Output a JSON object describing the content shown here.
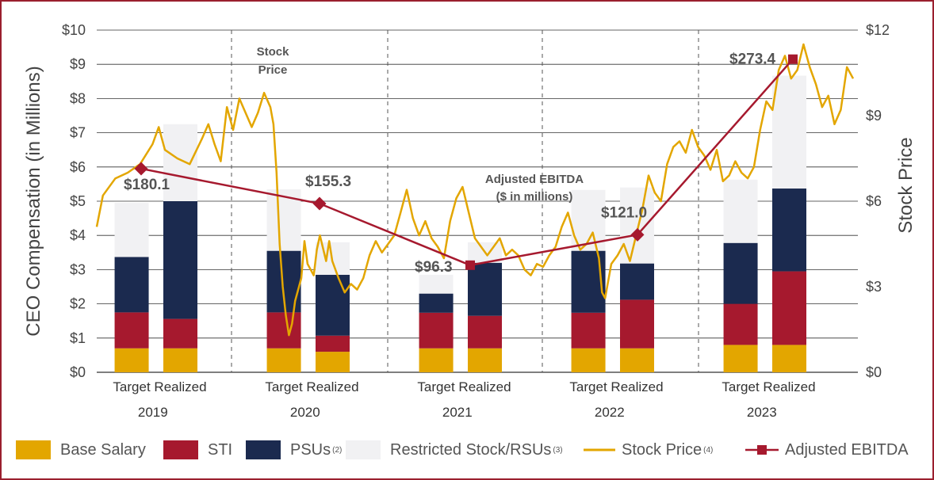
{
  "chart_data": {
    "type": "bar",
    "title": "",
    "ylabel": "CEO Compensation (in Millions)",
    "y2label": "Stock Price",
    "ylim": [
      0,
      10
    ],
    "y2lim": [
      0,
      12
    ],
    "yticks": [
      "$0",
      "$1",
      "$2",
      "$3",
      "$4",
      "$5",
      "$6",
      "$7",
      "$8",
      "$9",
      "$10"
    ],
    "y2ticks": [
      "$0",
      "$3",
      "$6",
      "$9",
      "$12"
    ],
    "years": [
      "2019",
      "2020",
      "2021",
      "2022",
      "2023"
    ],
    "bar_labels": [
      "Target",
      "Realized"
    ],
    "groups": [
      {
        "year": "2019",
        "bars": [
          {
            "label": "Target",
            "base": 0.7,
            "sti": 1.05,
            "psus": 1.62,
            "rs": 1.58
          },
          {
            "label": "Realized",
            "base": 0.7,
            "sti": 0.86,
            "psus": 3.44,
            "rs": 2.25
          }
        ]
      },
      {
        "year": "2020",
        "bars": [
          {
            "label": "Target",
            "base": 0.7,
            "sti": 1.05,
            "psus": 1.8,
            "rs": 1.8
          },
          {
            "label": "Realized",
            "base": 0.6,
            "sti": 0.47,
            "psus": 1.78,
            "rs": 0.95
          }
        ]
      },
      {
        "year": "2021",
        "bars": [
          {
            "label": "Target",
            "base": 0.7,
            "sti": 1.04,
            "psus": 0.56,
            "rs": 0.55
          },
          {
            "label": "Realized",
            "base": 0.7,
            "sti": 0.95,
            "psus": 1.55,
            "rs": 0.6
          }
        ]
      },
      {
        "year": "2022",
        "bars": [
          {
            "label": "Target",
            "base": 0.7,
            "sti": 1.04,
            "psus": 1.81,
            "rs": 1.78
          },
          {
            "label": "Realized",
            "base": 0.7,
            "sti": 1.42,
            "psus": 1.06,
            "rs": 2.22
          }
        ]
      },
      {
        "year": "2023",
        "bars": [
          {
            "label": "Target",
            "base": 0.8,
            "sti": 1.2,
            "psus": 1.78,
            "rs": 1.85
          },
          {
            "label": "Realized",
            "base": 0.8,
            "sti": 2.15,
            "psus": 2.42,
            "rs": 3.3
          }
        ]
      }
    ],
    "adjusted_ebitda": [
      {
        "year": "2019",
        "value": 180.1,
        "label": "$180.1",
        "y_left": 5.95
      },
      {
        "year": "2020",
        "value": 155.3,
        "label": "$155.3",
        "y_left": 4.93
      },
      {
        "year": "2021",
        "value": 96.3,
        "label": "$96.3",
        "y_left": 3.13
      },
      {
        "year": "2022",
        "value": 121.0,
        "label": "$121.0",
        "y_left": 4.02
      },
      {
        "year": "2023",
        "value": 273.4,
        "label": "$273.4",
        "y_left": 9.15
      }
    ],
    "stock_price_points": [
      [
        0.0,
        5.1
      ],
      [
        0.01,
        6.2
      ],
      [
        0.03,
        6.8
      ],
      [
        0.05,
        7.0
      ],
      [
        0.07,
        7.3
      ],
      [
        0.09,
        8.0
      ],
      [
        0.1,
        8.6
      ],
      [
        0.11,
        7.8
      ],
      [
        0.13,
        7.5
      ],
      [
        0.15,
        7.3
      ],
      [
        0.17,
        8.2
      ],
      [
        0.18,
        8.7
      ],
      [
        0.19,
        8.0
      ],
      [
        0.2,
        7.4
      ],
      [
        0.21,
        9.3
      ],
      [
        0.22,
        8.5
      ],
      [
        0.23,
        9.6
      ],
      [
        0.24,
        9.1
      ],
      [
        0.25,
        8.6
      ],
      [
        0.26,
        9.1
      ],
      [
        0.27,
        9.8
      ],
      [
        0.28,
        9.3
      ],
      [
        0.285,
        8.7
      ],
      [
        0.29,
        7.0
      ],
      [
        0.295,
        4.5
      ],
      [
        0.3,
        3.0
      ],
      [
        0.305,
        2.0
      ],
      [
        0.31,
        1.3
      ],
      [
        0.315,
        1.7
      ],
      [
        0.32,
        2.5
      ],
      [
        0.33,
        3.3
      ],
      [
        0.335,
        4.6
      ],
      [
        0.34,
        3.8
      ],
      [
        0.35,
        3.4
      ],
      [
        0.355,
        4.3
      ],
      [
        0.36,
        4.8
      ],
      [
        0.37,
        3.9
      ],
      [
        0.375,
        4.6
      ],
      [
        0.38,
        3.9
      ],
      [
        0.39,
        3.3
      ],
      [
        0.4,
        2.8
      ],
      [
        0.41,
        3.1
      ],
      [
        0.42,
        2.9
      ],
      [
        0.43,
        3.3
      ],
      [
        0.44,
        4.1
      ],
      [
        0.45,
        4.6
      ],
      [
        0.46,
        4.2
      ],
      [
        0.47,
        4.5
      ],
      [
        0.48,
        4.8
      ],
      [
        0.49,
        5.6
      ],
      [
        0.5,
        6.4
      ],
      [
        0.51,
        5.4
      ],
      [
        0.52,
        4.8
      ],
      [
        0.53,
        5.3
      ],
      [
        0.54,
        4.7
      ],
      [
        0.55,
        4.4
      ],
      [
        0.56,
        4.0
      ],
      [
        0.57,
        5.3
      ],
      [
        0.58,
        6.1
      ],
      [
        0.59,
        6.5
      ],
      [
        0.6,
        5.6
      ],
      [
        0.61,
        4.7
      ],
      [
        0.62,
        4.4
      ],
      [
        0.63,
        4.1
      ],
      [
        0.64,
        4.4
      ],
      [
        0.65,
        4.7
      ],
      [
        0.66,
        4.1
      ],
      [
        0.67,
        4.3
      ],
      [
        0.68,
        4.1
      ],
      [
        0.69,
        3.6
      ],
      [
        0.7,
        3.4
      ],
      [
        0.71,
        3.8
      ],
      [
        0.72,
        3.7
      ],
      [
        0.73,
        4.1
      ],
      [
        0.74,
        4.4
      ],
      [
        0.75,
        5.1
      ],
      [
        0.76,
        5.6
      ],
      [
        0.77,
        4.8
      ],
      [
        0.78,
        4.3
      ],
      [
        0.79,
        4.5
      ],
      [
        0.8,
        4.9
      ],
      [
        0.81,
        4.0
      ],
      [
        0.815,
        2.8
      ],
      [
        0.82,
        2.6
      ],
      [
        0.83,
        3.8
      ],
      [
        0.84,
        4.1
      ],
      [
        0.85,
        4.5
      ],
      [
        0.86,
        3.9
      ],
      [
        0.87,
        4.8
      ],
      [
        0.88,
        5.7
      ],
      [
        0.89,
        6.9
      ],
      [
        0.9,
        6.3
      ],
      [
        0.91,
        6.0
      ],
      [
        0.92,
        7.3
      ],
      [
        0.93,
        7.9
      ],
      [
        0.94,
        8.1
      ],
      [
        0.95,
        7.7
      ],
      [
        0.96,
        8.5
      ],
      [
        0.97,
        7.9
      ],
      [
        0.98,
        7.6
      ],
      [
        0.99,
        7.1
      ],
      [
        1.0,
        7.8
      ],
      [
        1.01,
        6.7
      ],
      [
        1.02,
        6.9
      ],
      [
        1.03,
        7.4
      ],
      [
        1.04,
        7.0
      ],
      [
        1.05,
        6.8
      ],
      [
        1.06,
        7.2
      ],
      [
        1.07,
        8.5
      ],
      [
        1.08,
        9.5
      ],
      [
        1.09,
        9.2
      ],
      [
        1.1,
        10.6
      ],
      [
        1.11,
        11.1
      ],
      [
        1.12,
        10.3
      ],
      [
        1.13,
        10.6
      ],
      [
        1.14,
        11.5
      ],
      [
        1.15,
        10.7
      ],
      [
        1.16,
        10.1
      ],
      [
        1.17,
        9.3
      ],
      [
        1.18,
        9.7
      ],
      [
        1.19,
        8.7
      ],
      [
        1.2,
        9.2
      ],
      [
        1.21,
        10.7
      ],
      [
        1.22,
        10.3
      ]
    ],
    "annotations": {
      "stock_price": [
        "Stock",
        "Price"
      ],
      "ebitda": [
        "Adjusted EBITDA",
        "($ in millions)"
      ]
    },
    "colors": {
      "base": "#E3A600",
      "sti": "#A6192E",
      "psus": "#1B2A4F",
      "rs": "#F1F1F3",
      "stock": "#E3A600",
      "ebitda": "#A6192E",
      "border": "#9A1F2E"
    }
  },
  "legend": {
    "base": "Base Salary",
    "sti": "STI",
    "psus": "PSUs",
    "psus_note": "(2)",
    "rs": "Restricted Stock/RSUs",
    "rs_note": "(3)",
    "stock": "Stock Price",
    "stock_note": "(4)",
    "ebitda": "Adjusted EBITDA"
  }
}
